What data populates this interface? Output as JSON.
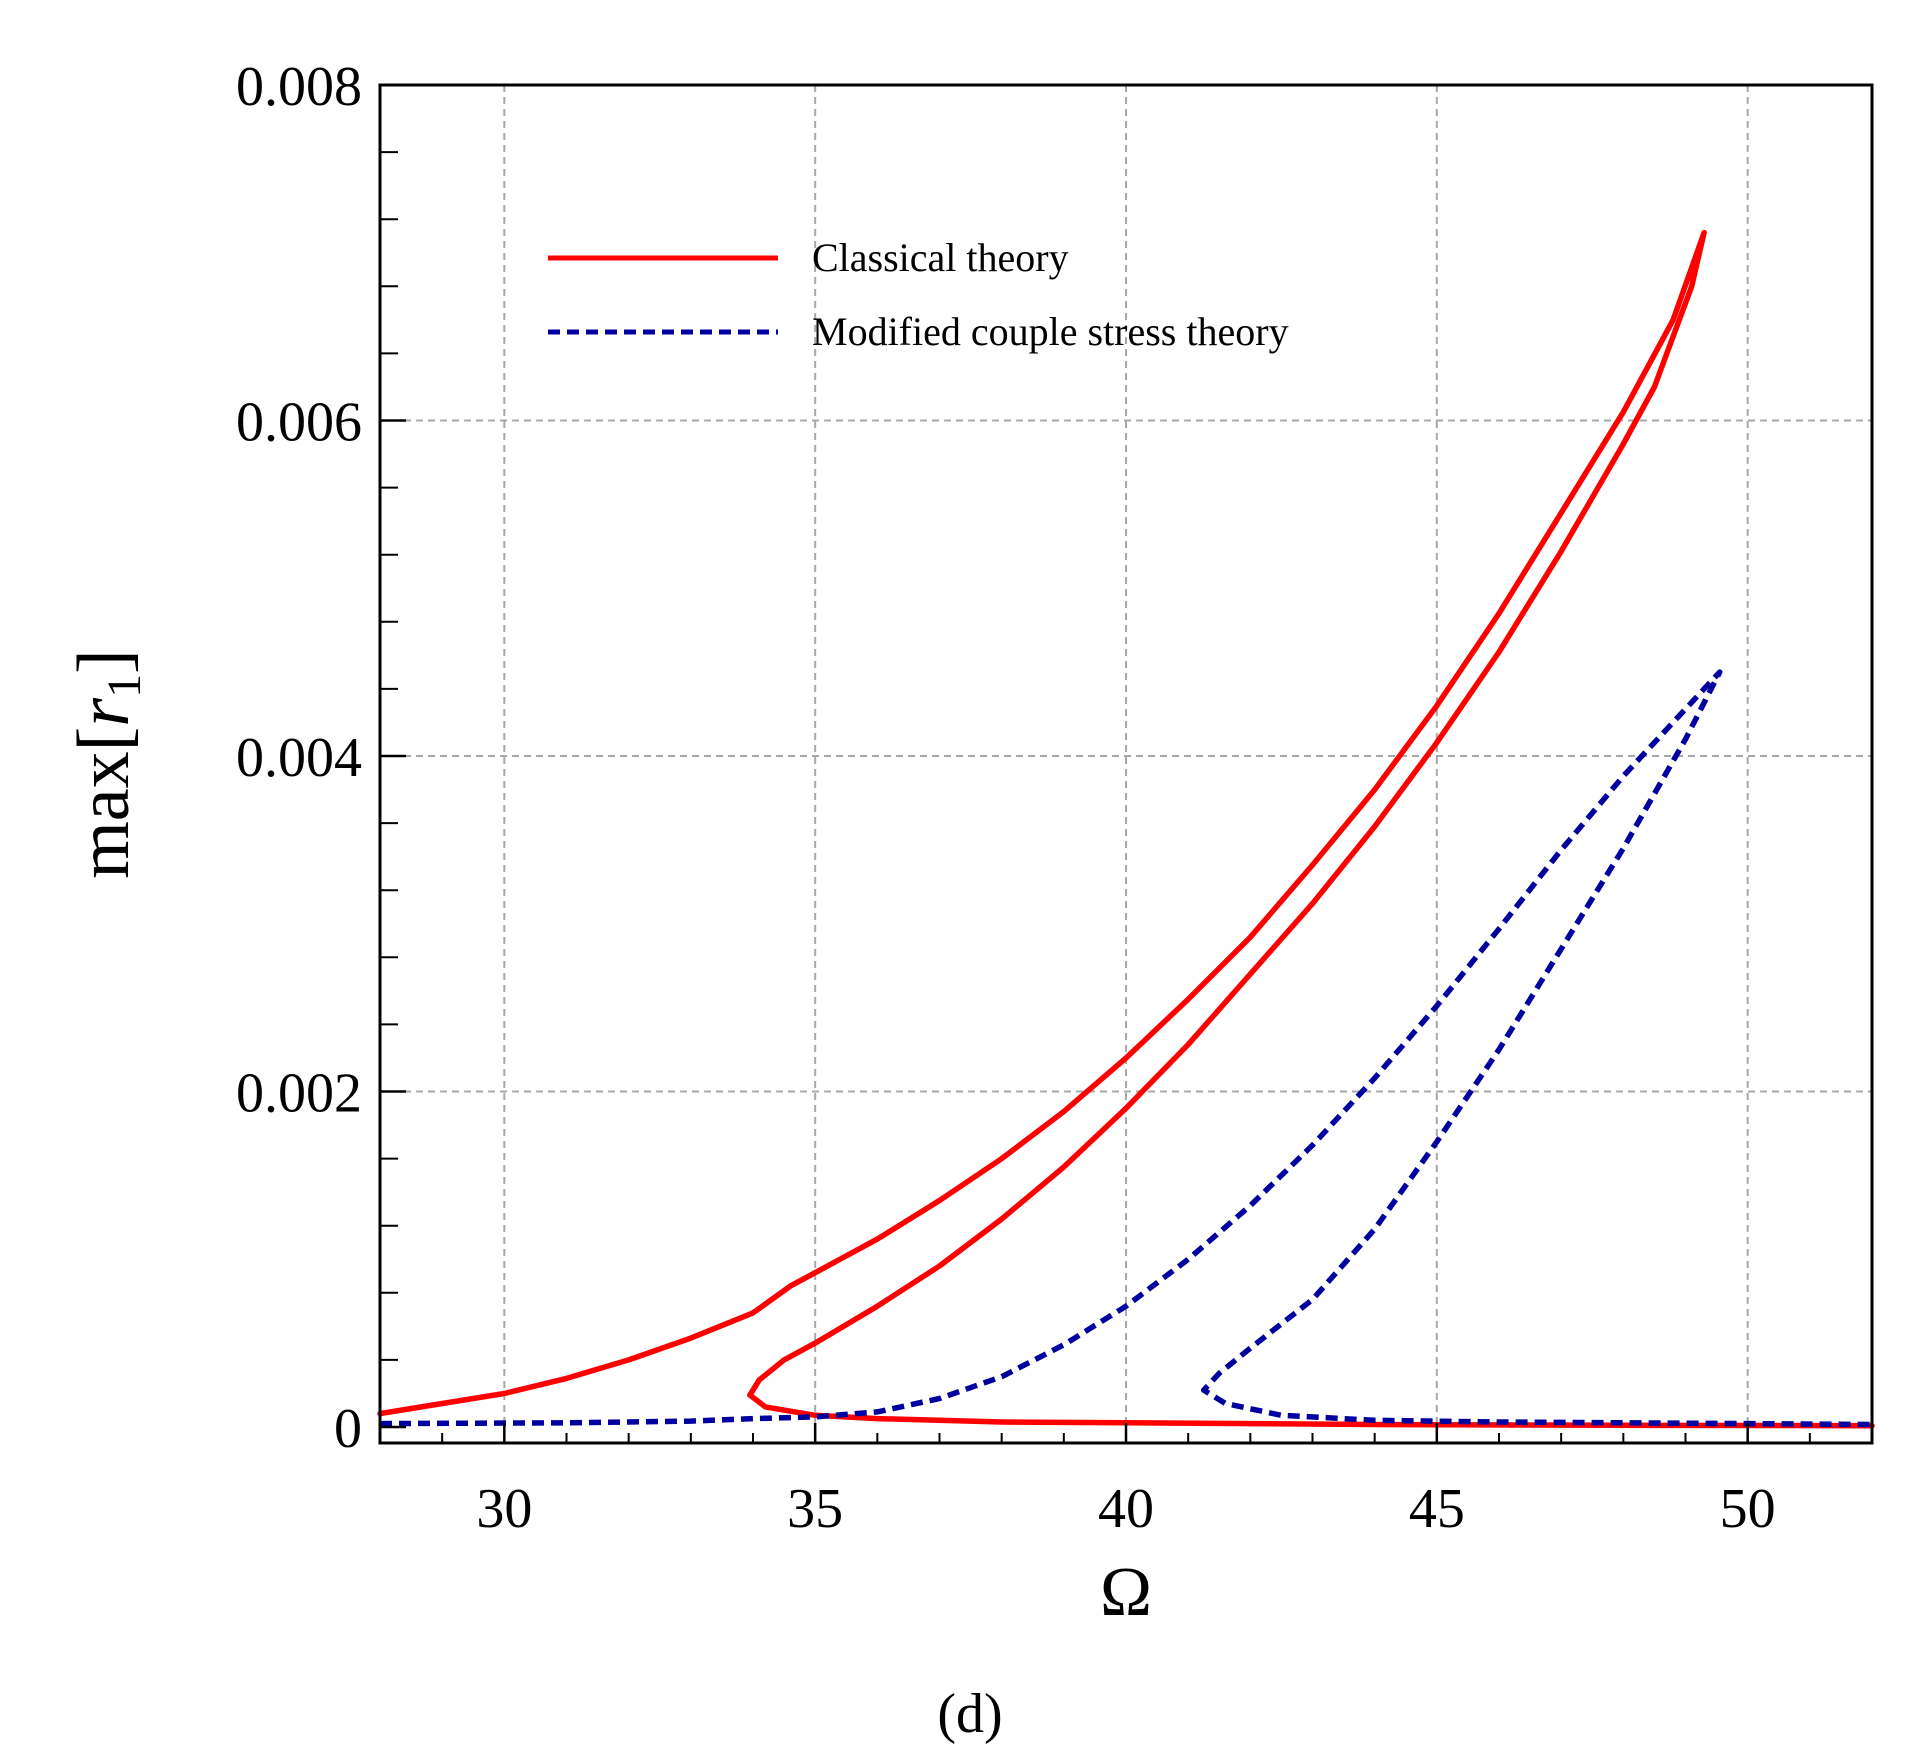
{
  "chart_data": {
    "type": "line",
    "title": "",
    "panel_label": "(d)",
    "xlabel": "Ω",
    "ylabel": {
      "prefix": "max[",
      "var": "r",
      "sub": "1",
      "suffix": "]"
    },
    "xlim": [
      28,
      52
    ],
    "ylim": [
      0,
      0.008
    ],
    "x_ticks": [
      30,
      35,
      40,
      45,
      50
    ],
    "x_tick_labels": [
      "30",
      "35",
      "40",
      "45",
      "50"
    ],
    "y_ticks": [
      0,
      0.002,
      0.004,
      0.006,
      0.008
    ],
    "y_tick_labels": [
      "0",
      "0.002",
      "0.004",
      "0.006",
      "0.008"
    ],
    "grid": true,
    "legend_position": "top-left",
    "series": [
      {
        "name": "Classical theory",
        "color": "#ff0000",
        "style": "solid",
        "points": [
          [
            28,
            8e-05
          ],
          [
            29,
            0.00014
          ],
          [
            30,
            0.0002
          ],
          [
            31,
            0.00029
          ],
          [
            32,
            0.0004
          ],
          [
            33,
            0.00053
          ],
          [
            34,
            0.00068
          ],
          [
            34.6,
            0.00084
          ],
          [
            35,
            0.00092
          ],
          [
            36,
            0.00112
          ],
          [
            37,
            0.00135
          ],
          [
            38,
            0.0016
          ],
          [
            39,
            0.00188
          ],
          [
            40,
            0.0022
          ],
          [
            41,
            0.00255
          ],
          [
            42,
            0.00292
          ],
          [
            43,
            0.00335
          ],
          [
            44,
            0.0038
          ],
          [
            45,
            0.0043
          ],
          [
            46,
            0.00485
          ],
          [
            47,
            0.00545
          ],
          [
            48,
            0.00605
          ],
          [
            48.8,
            0.0066
          ],
          [
            49.3,
            0.00712
          ],
          [
            49.1,
            0.0068
          ],
          [
            48.5,
            0.0062
          ],
          [
            48,
            0.00586
          ],
          [
            47,
            0.00522
          ],
          [
            46,
            0.00462
          ],
          [
            45,
            0.00408
          ],
          [
            44,
            0.00358
          ],
          [
            43,
            0.00312
          ],
          [
            42,
            0.0027
          ],
          [
            41,
            0.00228
          ],
          [
            40,
            0.0019
          ],
          [
            39,
            0.00155
          ],
          [
            38,
            0.00124
          ],
          [
            37,
            0.00096
          ],
          [
            36,
            0.00072
          ],
          [
            35,
            0.0005
          ],
          [
            34.5,
            0.0004
          ],
          [
            34.1,
            0.00028
          ],
          [
            33.95,
            0.00019
          ],
          [
            34.2,
            0.00012
          ],
          [
            35,
            7e-05
          ],
          [
            36,
            5e-05
          ],
          [
            38,
            3e-05
          ],
          [
            40,
            2.5e-05
          ],
          [
            44,
            1.5e-05
          ],
          [
            48,
            1e-05
          ],
          [
            52,
            8e-06
          ]
        ]
      },
      {
        "name": "Modified couple stress theory",
        "color": "#0000a0",
        "style": "dashed",
        "points": [
          [
            28,
            2e-05
          ],
          [
            31,
            2.5e-05
          ],
          [
            33,
            3.5e-05
          ],
          [
            34,
            5e-05
          ],
          [
            35,
            6e-05
          ],
          [
            36,
            9e-05
          ],
          [
            37,
            0.00017
          ],
          [
            38,
            0.0003
          ],
          [
            39,
            0.00049
          ],
          [
            40,
            0.00072
          ],
          [
            41,
            0.001
          ],
          [
            42,
            0.00132
          ],
          [
            43,
            0.00168
          ],
          [
            44,
            0.00208
          ],
          [
            45,
            0.00251
          ],
          [
            46,
            0.00297
          ],
          [
            47,
            0.00344
          ],
          [
            48,
            0.00388
          ],
          [
            49,
            0.00428
          ],
          [
            49.55,
            0.0045
          ],
          [
            49,
            0.0041
          ],
          [
            48,
            0.00345
          ],
          [
            47,
            0.00285
          ],
          [
            46,
            0.00225
          ],
          [
            45,
            0.0017
          ],
          [
            44,
            0.00118
          ],
          [
            43,
            0.00076
          ],
          [
            42,
            0.00047
          ],
          [
            41.5,
            0.00032
          ],
          [
            41.25,
            0.00022
          ],
          [
            41.6,
            0.00014
          ],
          [
            42.5,
            7e-05
          ],
          [
            44,
            4e-05
          ],
          [
            46,
            3e-05
          ],
          [
            50,
            2e-05
          ],
          [
            52,
            1.5e-05
          ]
        ]
      }
    ]
  }
}
